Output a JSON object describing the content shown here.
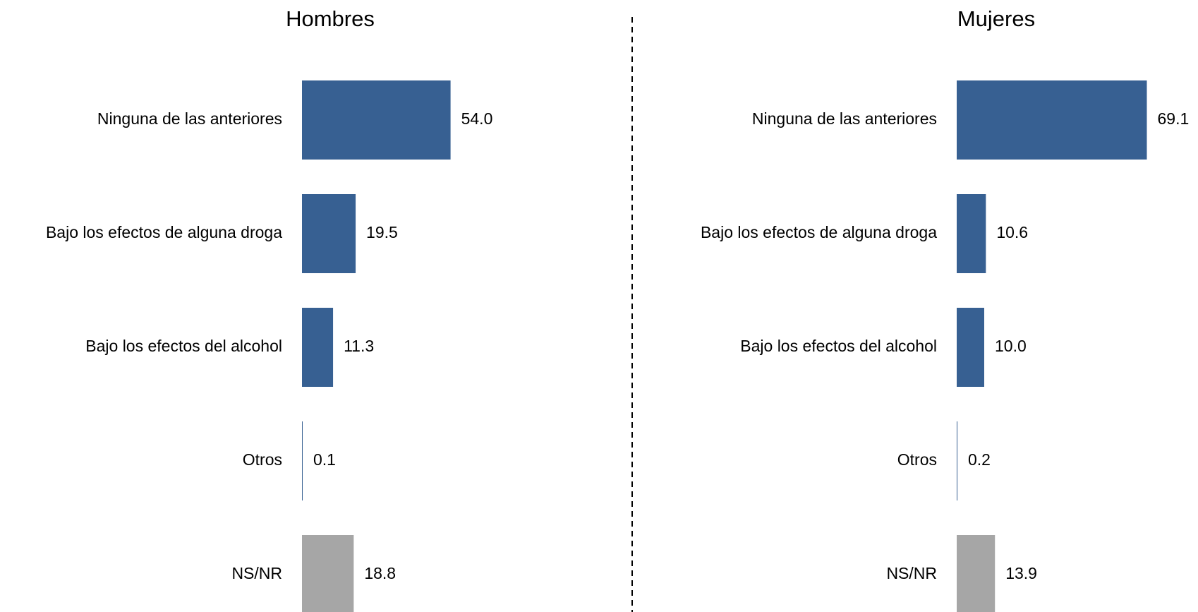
{
  "chart_data": [
    {
      "type": "bar",
      "orientation": "horizontal",
      "title": "Hombres",
      "categories": [
        "Ninguna de las anteriores",
        "Bajo los efectos de alguna droga",
        "Bajo los efectos del alcohol",
        "Otros",
        "NS/NR"
      ],
      "values": [
        54.0,
        19.5,
        11.3,
        0.1,
        18.8
      ],
      "value_labels": [
        "54.0",
        "19.5",
        "11.3",
        "0.1",
        "18.8"
      ],
      "colors": [
        "#376092",
        "#376092",
        "#376092",
        "#376092",
        "#a6a6a6"
      ]
    },
    {
      "type": "bar",
      "orientation": "horizontal",
      "title": "Mujeres",
      "categories": [
        "Ninguna de las anteriores",
        "Bajo los efectos de alguna droga",
        "Bajo los efectos del alcohol",
        "Otros",
        "NS/NR"
      ],
      "values": [
        69.1,
        10.6,
        10.0,
        0.2,
        13.9
      ],
      "value_labels": [
        "69.1",
        "10.6",
        "10.0",
        "0.2",
        "13.9"
      ],
      "colors": [
        "#376092",
        "#376092",
        "#376092",
        "#376092",
        "#a6a6a6"
      ]
    }
  ]
}
